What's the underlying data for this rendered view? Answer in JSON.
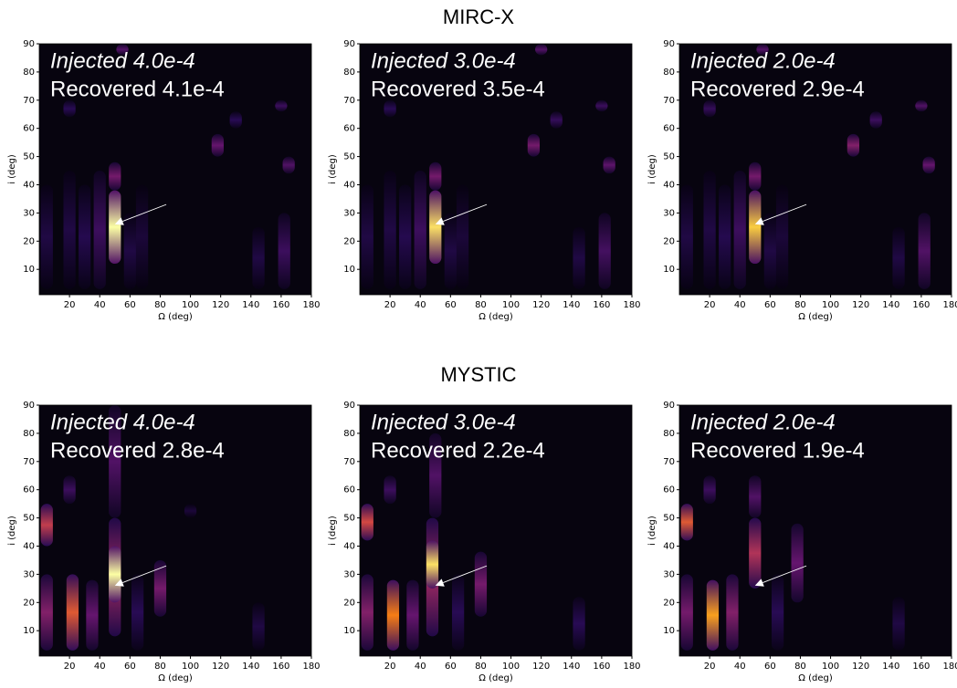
{
  "row_titles": [
    "MIRC-X",
    "MYSTIC"
  ],
  "chart_data": [
    {
      "type": "heatmap",
      "xlabel": "Ω (deg)",
      "ylabel": "i (deg)",
      "xlim": [
        0,
        180
      ],
      "ylim": [
        1,
        90
      ],
      "xticks": [
        20,
        40,
        60,
        80,
        100,
        120,
        140,
        160,
        180
      ],
      "yticks": [
        10,
        20,
        30,
        40,
        50,
        60,
        70,
        80,
        90
      ],
      "injected_label": "Injected 4.0e-4",
      "recovered_label": "Recovered 4.1e-4",
      "arrow": {
        "from": [
          84,
          33
        ],
        "to": [
          50,
          26
        ]
      },
      "columns": [
        {
          "x": 5,
          "y0": 3,
          "y1": 40,
          "value": 0.12
        },
        {
          "x": 20,
          "y0": 3,
          "y1": 45,
          "value": 0.12
        },
        {
          "x": 30,
          "y0": 3,
          "y1": 40,
          "value": 0.14
        },
        {
          "x": 40,
          "y0": 3,
          "y1": 45,
          "value": 0.2
        },
        {
          "x": 60,
          "y0": 3,
          "y1": 30,
          "value": 0.12
        },
        {
          "x": 68,
          "y0": 3,
          "y1": 40,
          "value": 0.1
        },
        {
          "x": 145,
          "y0": 3,
          "y1": 25,
          "value": 0.12
        },
        {
          "x": 162,
          "y0": 3,
          "y1": 30,
          "value": 0.2
        },
        {
          "x": 165,
          "y0": 44,
          "y1": 50,
          "value": 0.25
        },
        {
          "x": 118,
          "y0": 50,
          "y1": 58,
          "value": 0.3
        },
        {
          "x": 130,
          "y0": 60,
          "y1": 66,
          "value": 0.15
        },
        {
          "x": 20,
          "y0": 64,
          "y1": 70,
          "value": 0.15
        },
        {
          "x": 55,
          "y0": 86,
          "y1": 90,
          "value": 0.25
        },
        {
          "x": 160,
          "y0": 66,
          "y1": 70,
          "value": 0.2
        },
        {
          "x": 50,
          "y0": 38,
          "y1": 48,
          "value": 0.35
        },
        {
          "x": 50,
          "y0": 12,
          "y1": 38,
          "value": 1.0
        }
      ]
    },
    {
      "type": "heatmap",
      "xlabel": "Ω (deg)",
      "ylabel": "i (deg)",
      "xlim": [
        0,
        180
      ],
      "ylim": [
        1,
        90
      ],
      "xticks": [
        20,
        40,
        60,
        80,
        100,
        120,
        140,
        160,
        180
      ],
      "yticks": [
        10,
        20,
        30,
        40,
        50,
        60,
        70,
        80,
        90
      ],
      "injected_label": "Injected 3.0e-4",
      "recovered_label": "Recovered 3.5e-4",
      "arrow": {
        "from": [
          84,
          33
        ],
        "to": [
          50,
          26
        ]
      },
      "columns": [
        {
          "x": 5,
          "y0": 3,
          "y1": 40,
          "value": 0.12
        },
        {
          "x": 20,
          "y0": 3,
          "y1": 45,
          "value": 0.12
        },
        {
          "x": 30,
          "y0": 3,
          "y1": 40,
          "value": 0.14
        },
        {
          "x": 40,
          "y0": 3,
          "y1": 45,
          "value": 0.2
        },
        {
          "x": 60,
          "y0": 3,
          "y1": 30,
          "value": 0.12
        },
        {
          "x": 68,
          "y0": 3,
          "y1": 40,
          "value": 0.1
        },
        {
          "x": 145,
          "y0": 3,
          "y1": 25,
          "value": 0.12
        },
        {
          "x": 162,
          "y0": 3,
          "y1": 30,
          "value": 0.22
        },
        {
          "x": 165,
          "y0": 44,
          "y1": 50,
          "value": 0.28
        },
        {
          "x": 115,
          "y0": 50,
          "y1": 58,
          "value": 0.35
        },
        {
          "x": 130,
          "y0": 60,
          "y1": 66,
          "value": 0.18
        },
        {
          "x": 20,
          "y0": 64,
          "y1": 70,
          "value": 0.15
        },
        {
          "x": 120,
          "y0": 86,
          "y1": 90,
          "value": 0.25
        },
        {
          "x": 160,
          "y0": 66,
          "y1": 70,
          "value": 0.2
        },
        {
          "x": 50,
          "y0": 38,
          "y1": 48,
          "value": 0.35
        },
        {
          "x": 50,
          "y0": 12,
          "y1": 38,
          "value": 0.95
        }
      ]
    },
    {
      "type": "heatmap",
      "xlabel": "Ω (deg)",
      "ylabel": "i (deg)",
      "xlim": [
        0,
        180
      ],
      "ylim": [
        1,
        90
      ],
      "xticks": [
        20,
        40,
        60,
        80,
        100,
        120,
        140,
        160,
        180
      ],
      "yticks": [
        10,
        20,
        30,
        40,
        50,
        60,
        70,
        80,
        90
      ],
      "injected_label": "Injected 2.0e-4",
      "recovered_label": "Recovered 2.9e-4",
      "arrow": {
        "from": [
          84,
          33
        ],
        "to": [
          50,
          26
        ]
      },
      "columns": [
        {
          "x": 5,
          "y0": 3,
          "y1": 40,
          "value": 0.12
        },
        {
          "x": 20,
          "y0": 3,
          "y1": 45,
          "value": 0.12
        },
        {
          "x": 30,
          "y0": 3,
          "y1": 40,
          "value": 0.14
        },
        {
          "x": 40,
          "y0": 3,
          "y1": 45,
          "value": 0.2
        },
        {
          "x": 60,
          "y0": 3,
          "y1": 30,
          "value": 0.12
        },
        {
          "x": 68,
          "y0": 3,
          "y1": 40,
          "value": 0.1
        },
        {
          "x": 145,
          "y0": 3,
          "y1": 25,
          "value": 0.12
        },
        {
          "x": 162,
          "y0": 3,
          "y1": 30,
          "value": 0.25
        },
        {
          "x": 165,
          "y0": 44,
          "y1": 50,
          "value": 0.3
        },
        {
          "x": 115,
          "y0": 50,
          "y1": 58,
          "value": 0.4
        },
        {
          "x": 130,
          "y0": 60,
          "y1": 66,
          "value": 0.2
        },
        {
          "x": 20,
          "y0": 64,
          "y1": 70,
          "value": 0.18
        },
        {
          "x": 55,
          "y0": 86,
          "y1": 90,
          "value": 0.25
        },
        {
          "x": 160,
          "y0": 66,
          "y1": 70,
          "value": 0.25
        },
        {
          "x": 50,
          "y0": 38,
          "y1": 48,
          "value": 0.35
        },
        {
          "x": 50,
          "y0": 12,
          "y1": 38,
          "value": 0.92
        }
      ]
    },
    {
      "type": "heatmap",
      "xlabel": "Ω (deg)",
      "ylabel": "i (deg)",
      "xlim": [
        0,
        180
      ],
      "ylim": [
        1,
        90
      ],
      "xticks": [
        20,
        40,
        60,
        80,
        100,
        120,
        140,
        160,
        180
      ],
      "yticks": [
        10,
        20,
        30,
        40,
        50,
        60,
        70,
        80,
        90
      ],
      "injected_label": "Injected 4.0e-4",
      "recovered_label": "Recovered 2.8e-4",
      "arrow": {
        "from": [
          84,
          33
        ],
        "to": [
          50,
          26
        ]
      },
      "columns": [
        {
          "x": 100,
          "y0": 50,
          "y1": 55,
          "value": 0.1
        },
        {
          "x": 145,
          "y0": 3,
          "y1": 20,
          "value": 0.12
        },
        {
          "x": 65,
          "y0": 3,
          "y1": 30,
          "value": 0.15
        },
        {
          "x": 20,
          "y0": 55,
          "y1": 65,
          "value": 0.2
        },
        {
          "x": 50,
          "y0": 50,
          "y1": 90,
          "value": 0.25
        },
        {
          "x": 35,
          "y0": 3,
          "y1": 28,
          "value": 0.3
        },
        {
          "x": 80,
          "y0": 15,
          "y1": 35,
          "value": 0.35
        },
        {
          "x": 5,
          "y0": 3,
          "y1": 30,
          "value": 0.4
        },
        {
          "x": 50,
          "y0": 8,
          "y1": 50,
          "value": 0.5
        },
        {
          "x": 5,
          "y0": 40,
          "y1": 55,
          "value": 0.6
        },
        {
          "x": 22,
          "y0": 3,
          "y1": 30,
          "value": 0.7
        },
        {
          "x": 50,
          "y0": 20,
          "y1": 40,
          "value": 1.0
        }
      ]
    },
    {
      "type": "heatmap",
      "xlabel": "Ω (deg)",
      "ylabel": "i (deg)",
      "xlim": [
        0,
        180
      ],
      "ylim": [
        1,
        90
      ],
      "xticks": [
        20,
        40,
        60,
        80,
        100,
        120,
        140,
        160,
        180
      ],
      "yticks": [
        10,
        20,
        30,
        40,
        50,
        60,
        70,
        80,
        90
      ],
      "injected_label": "Injected 3.0e-4",
      "recovered_label": "Recovered 2.2e-4",
      "arrow": {
        "from": [
          84,
          33
        ],
        "to": [
          50,
          26
        ]
      },
      "columns": [
        {
          "x": 145,
          "y0": 3,
          "y1": 22,
          "value": 0.15
        },
        {
          "x": 65,
          "y0": 3,
          "y1": 30,
          "value": 0.15
        },
        {
          "x": 20,
          "y0": 55,
          "y1": 65,
          "value": 0.2
        },
        {
          "x": 50,
          "y0": 50,
          "y1": 80,
          "value": 0.25
        },
        {
          "x": 35,
          "y0": 3,
          "y1": 28,
          "value": 0.3
        },
        {
          "x": 80,
          "y0": 15,
          "y1": 38,
          "value": 0.35
        },
        {
          "x": 5,
          "y0": 3,
          "y1": 30,
          "value": 0.4
        },
        {
          "x": 48,
          "y0": 8,
          "y1": 50,
          "value": 0.5
        },
        {
          "x": 5,
          "y0": 42,
          "y1": 55,
          "value": 0.65
        },
        {
          "x": 22,
          "y0": 3,
          "y1": 28,
          "value": 0.8
        },
        {
          "x": 48,
          "y0": 25,
          "y1": 42,
          "value": 0.95
        }
      ]
    },
    {
      "type": "heatmap",
      "xlabel": "Ω (deg)",
      "ylabel": "i (deg)",
      "xlim": [
        0,
        180
      ],
      "ylim": [
        1,
        90
      ],
      "xticks": [
        20,
        40,
        60,
        80,
        100,
        120,
        140,
        160,
        180
      ],
      "yticks": [
        10,
        20,
        30,
        40,
        50,
        60,
        70,
        80,
        90
      ],
      "injected_label": "Injected 2.0e-4",
      "recovered_label": "Recovered 1.9e-4",
      "arrow": {
        "from": [
          84,
          33
        ],
        "to": [
          50,
          26
        ]
      },
      "columns": [
        {
          "x": 145,
          "y0": 3,
          "y1": 22,
          "value": 0.12
        },
        {
          "x": 65,
          "y0": 3,
          "y1": 30,
          "value": 0.15
        },
        {
          "x": 20,
          "y0": 55,
          "y1": 65,
          "value": 0.2
        },
        {
          "x": 50,
          "y0": 50,
          "y1": 65,
          "value": 0.25
        },
        {
          "x": 78,
          "y0": 20,
          "y1": 48,
          "value": 0.3
        },
        {
          "x": 5,
          "y0": 3,
          "y1": 30,
          "value": 0.35
        },
        {
          "x": 35,
          "y0": 3,
          "y1": 30,
          "value": 0.4
        },
        {
          "x": 50,
          "y0": 25,
          "y1": 50,
          "value": 0.55
        },
        {
          "x": 5,
          "y0": 42,
          "y1": 55,
          "value": 0.7
        },
        {
          "x": 22,
          "y0": 3,
          "y1": 28,
          "value": 0.85
        }
      ]
    }
  ]
}
